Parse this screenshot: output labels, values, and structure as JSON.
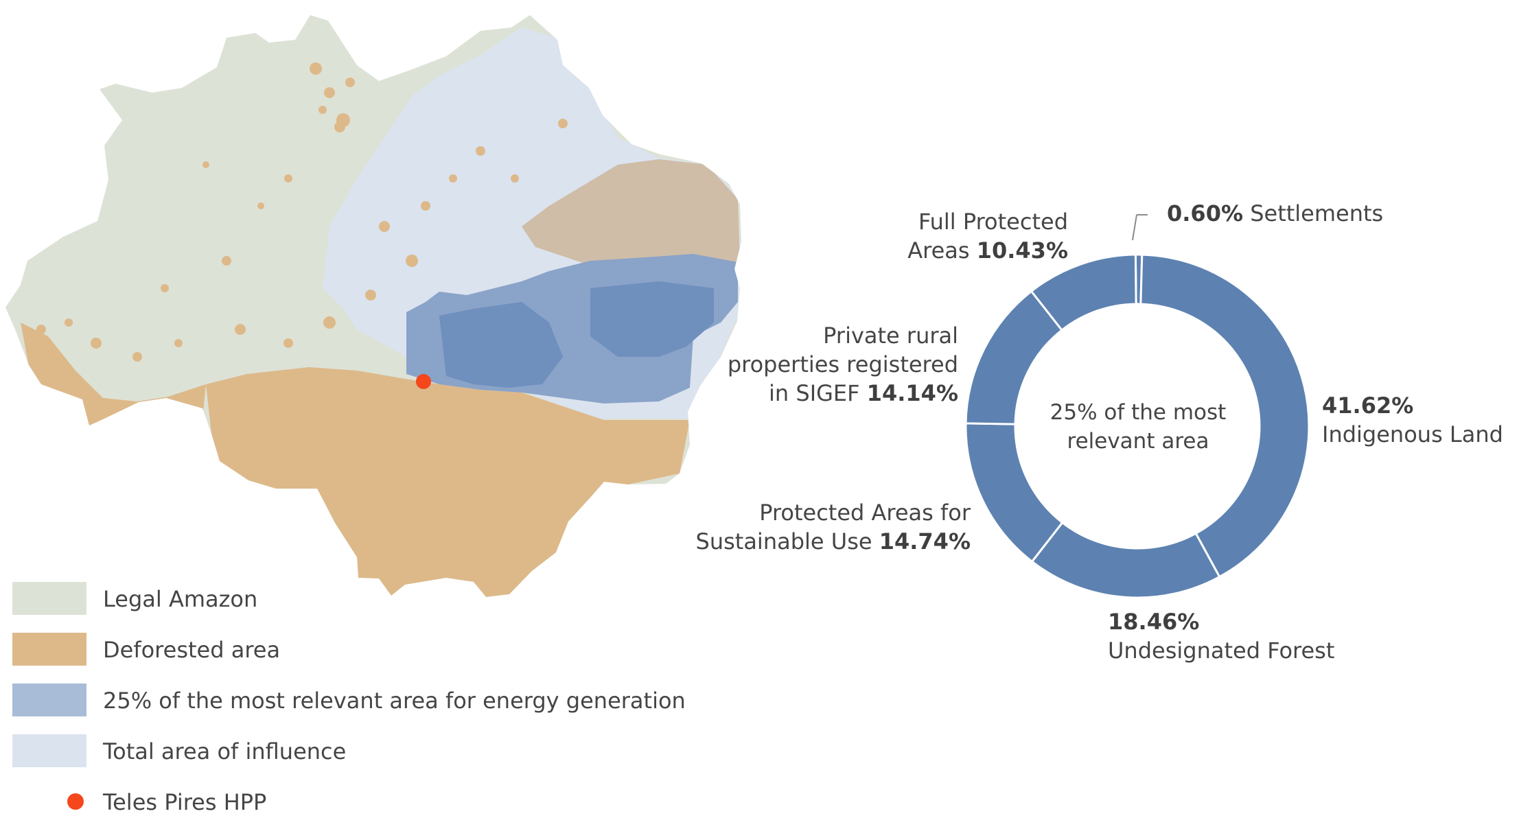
{
  "colors": {
    "legal_amazon": "#dde2d6",
    "deforested": "#ddb98a",
    "relevant_area": "#a9bcd7",
    "influence_area": "#dbe3ef",
    "hpp_marker": "#f5461c",
    "donut_fill": "#5d82b1"
  },
  "legend": [
    {
      "label": "Legal Amazon",
      "color": "#dde2d6",
      "shape": "square"
    },
    {
      "label": "Deforested area",
      "color": "#ddb98a",
      "shape": "square"
    },
    {
      "label": "25% of the most relevant area for energy generation",
      "color": "#a9bcd7",
      "shape": "square"
    },
    {
      "label": "Total area of influence",
      "color": "#dbe3ef",
      "shape": "square"
    },
    {
      "label": "Teles Pires HPP",
      "color": "#f5461c",
      "shape": "circle"
    }
  ],
  "chart_data": {
    "type": "pie",
    "donut": true,
    "center_label": "25% of the most relevant area",
    "unit": "%",
    "slices": [
      {
        "label": "Settlements",
        "value": 0.6
      },
      {
        "label": "Indigenous Land",
        "value": 41.62
      },
      {
        "label": "Undesignated Forest",
        "value": 18.46
      },
      {
        "label": "Protected Areas for Sustainable Use",
        "value": 14.74
      },
      {
        "label": "Private rural properties registered in SIGEF",
        "value": 14.14
      },
      {
        "label": "Full Protected Areas",
        "value": 10.43
      }
    ],
    "labels": {
      "settlements": {
        "value": "0.60%",
        "name": "Settlements"
      },
      "indigenous": {
        "value": "41.62%",
        "name": "Indigenous Land"
      },
      "undesignated": {
        "value": "18.46%",
        "name": "Undesignated Forest"
      },
      "sustainable": {
        "line1": "Protected Areas for",
        "line2": "Sustainable Use",
        "value": "14.74%"
      },
      "sigef": {
        "line1": "Private rural",
        "line2": "properties registered",
        "line3": "in SIGEF",
        "value": "14.14%"
      },
      "full_protected": {
        "line1": "Full Protected",
        "line2": "Areas",
        "value": "10.43%"
      }
    }
  }
}
